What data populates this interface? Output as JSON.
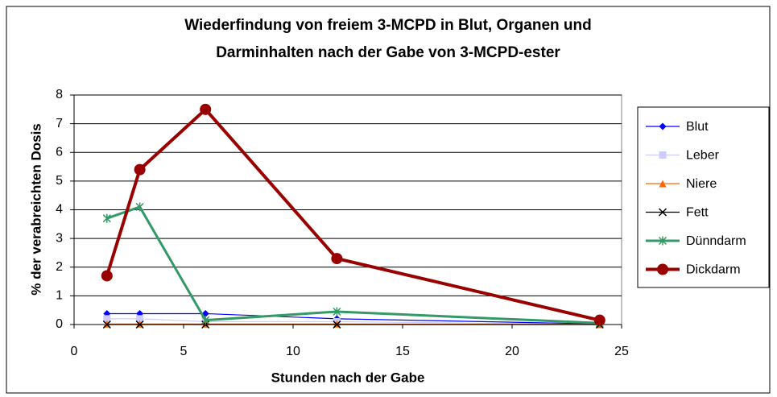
{
  "chart_data": {
    "type": "line",
    "title": "Wiederfindung von freiem 3-MCPD in Blut, Organen und",
    "subtitle": "Darminhalten nach der Gabe von 3-MCPD-ester",
    "x_label": "Stunden nach der Gabe",
    "y_label": "% der verabreichten Dosis",
    "x": [
      1.5,
      3,
      6,
      12,
      24
    ],
    "series": [
      {
        "name": "Blut",
        "color": "#0000ff",
        "marker": "diamond",
        "values": [
          0.38,
          0.38,
          0.38,
          0.2,
          0.02
        ]
      },
      {
        "name": "Leber",
        "color": "#ccccff",
        "marker": "square",
        "values": [
          0.2,
          0.2,
          0.1,
          0.1,
          0.0
        ]
      },
      {
        "name": "Niere",
        "color": "#ff6600",
        "marker": "triangle",
        "values": [
          0.02,
          0.02,
          0.02,
          0.02,
          0.0
        ]
      },
      {
        "name": "Fett",
        "color": "#000000",
        "marker": "x",
        "values": [
          0.0,
          0.0,
          0.0,
          0.0,
          0.0
        ]
      },
      {
        "name": "Dünndarm",
        "color": "#339966",
        "marker": "star",
        "values": [
          3.7,
          4.1,
          0.15,
          0.45,
          0.05
        ]
      },
      {
        "name": "Dickdarm",
        "color": "#990000",
        "marker": "circle",
        "values": [
          1.7,
          5.4,
          7.5,
          2.3,
          0.15
        ]
      }
    ],
    "xlim": [
      0,
      25
    ],
    "xticks": [
      0,
      5,
      10,
      15,
      20,
      25
    ],
    "ylim": [
      0,
      8
    ],
    "yticks": [
      0,
      1,
      2,
      3,
      4,
      5,
      6,
      7,
      8
    ],
    "grid": true,
    "legend": "right"
  }
}
